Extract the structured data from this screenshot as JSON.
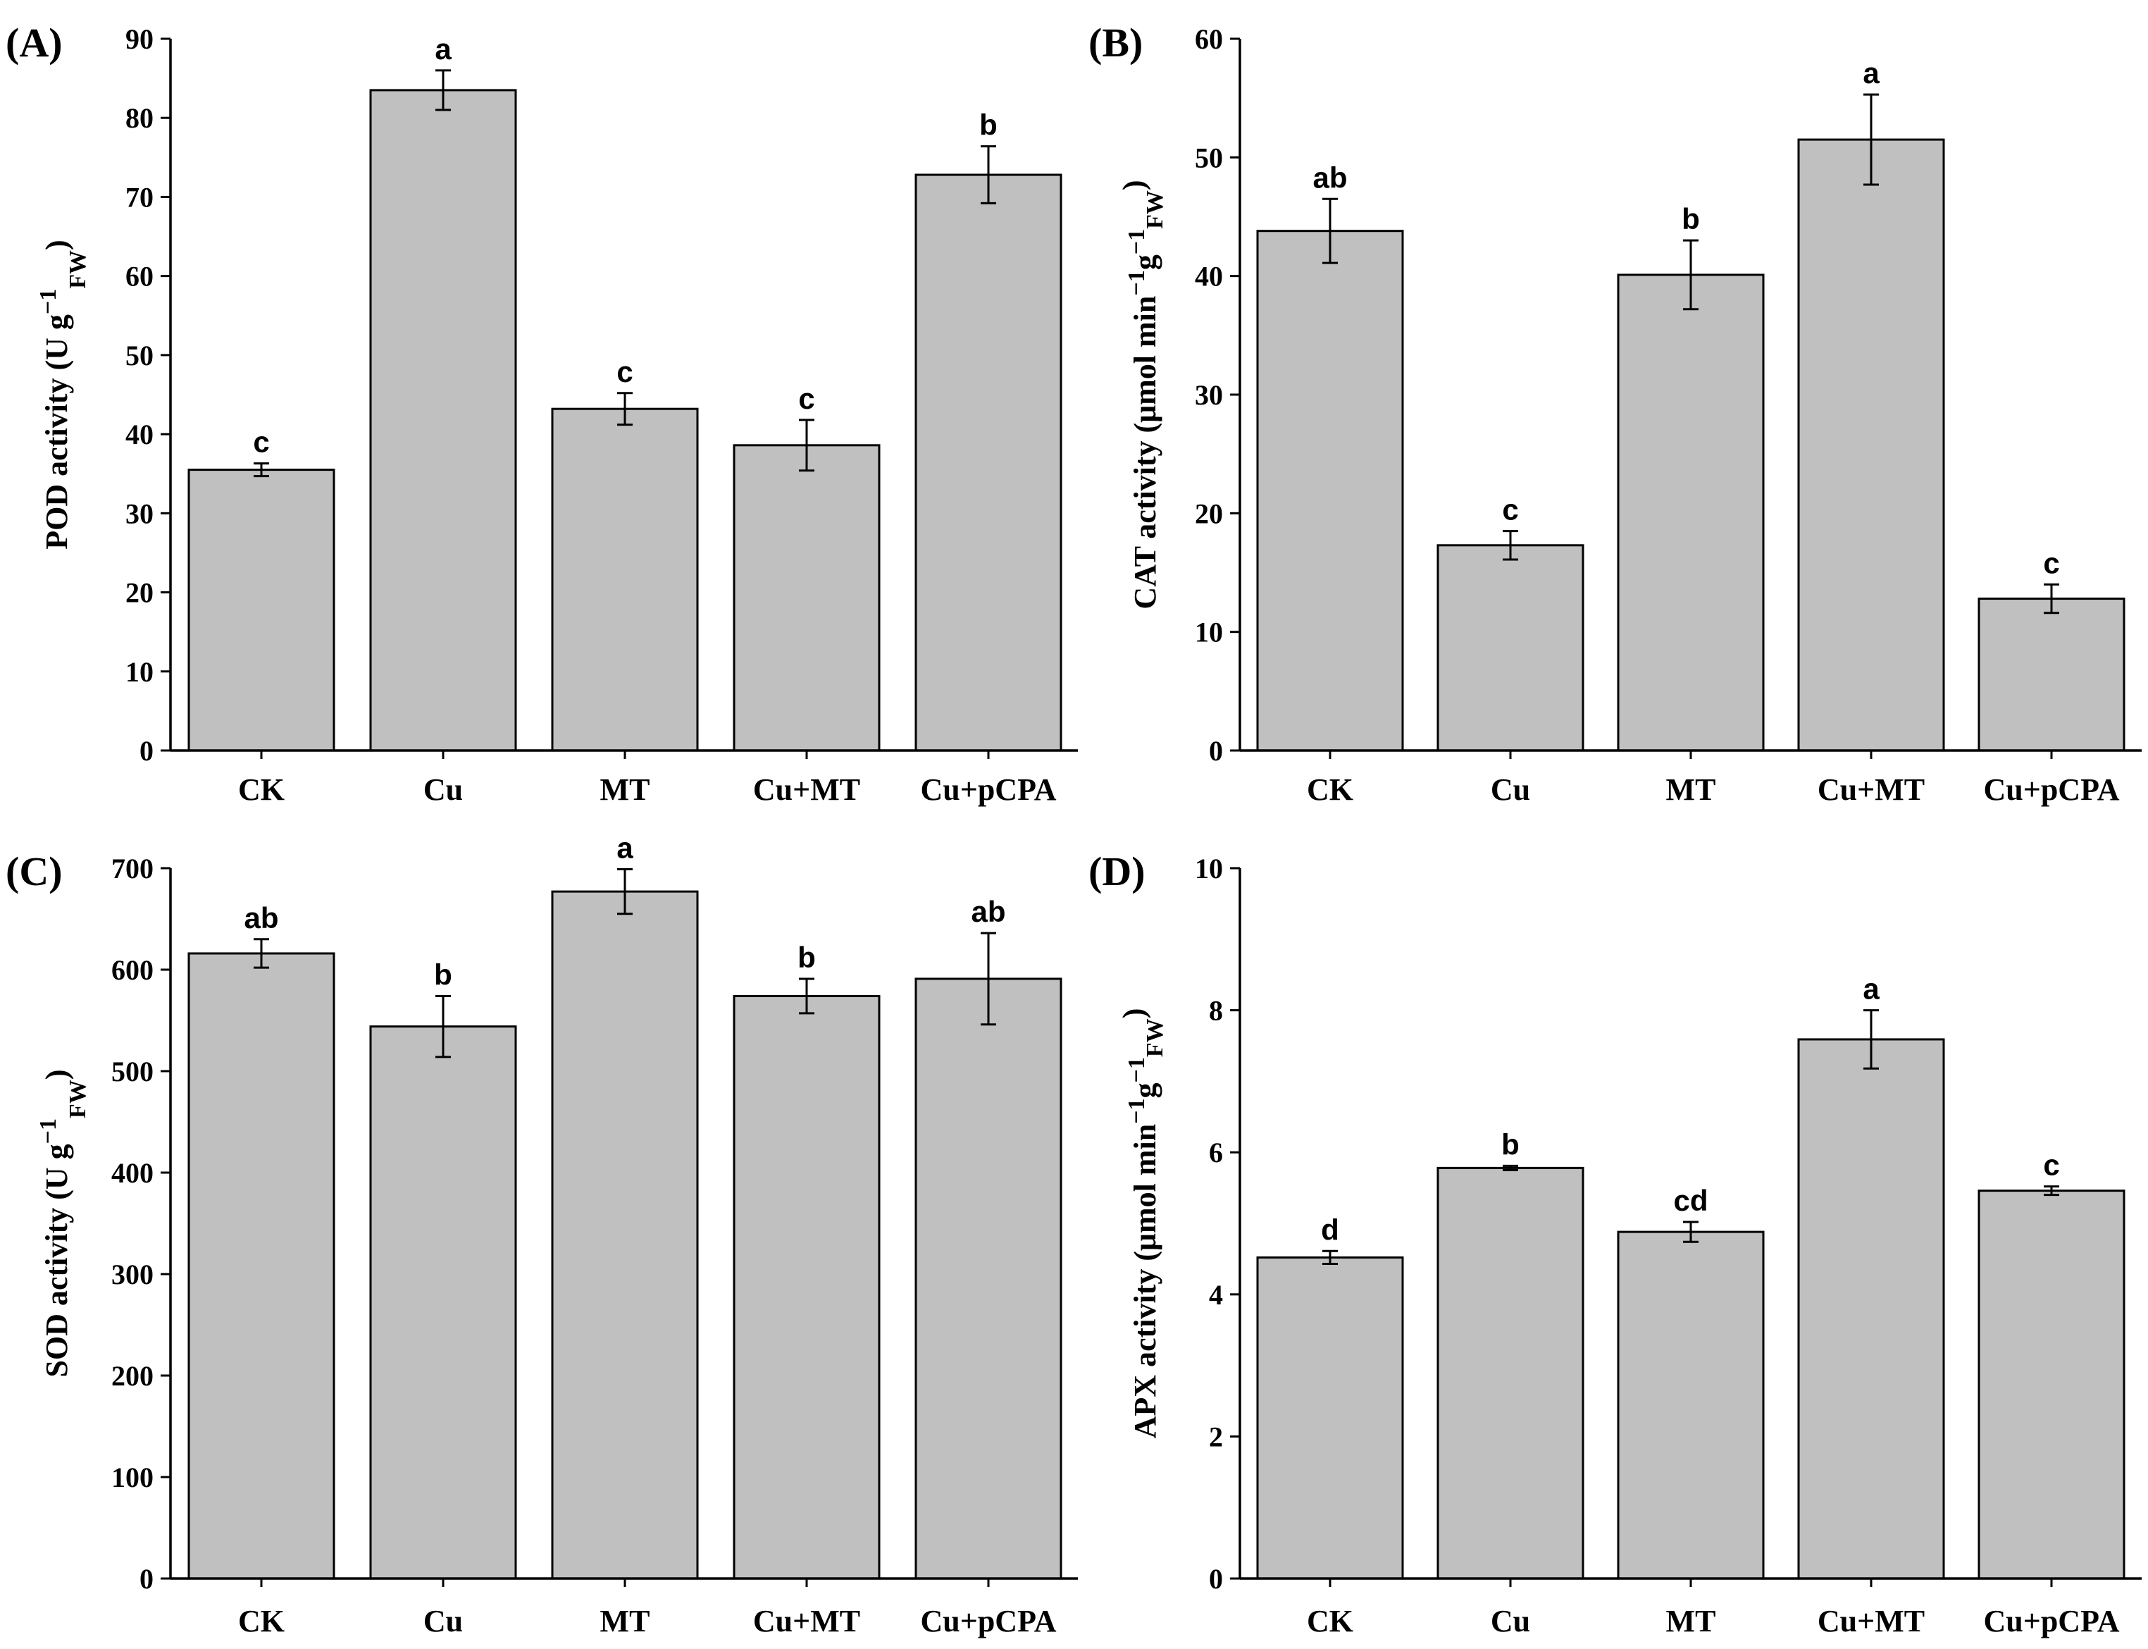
{
  "bar_fill": "#c0c0c0",
  "bar_stroke": "#000000",
  "chart_data": [
    {
      "panel": "(A)",
      "type": "bar",
      "categories": [
        "CK",
        "Cu",
        "MT",
        "Cu+MT",
        "Cu+pCPA"
      ],
      "values": [
        35.5,
        83.5,
        43.2,
        38.6,
        72.8
      ],
      "errors": [
        0.8,
        2.5,
        2.0,
        3.2,
        3.6
      ],
      "letters": [
        "c",
        "a",
        "c",
        "c",
        "b"
      ],
      "ylim": [
        0,
        90
      ],
      "yticks": [
        0,
        10,
        20,
        30,
        40,
        50,
        60,
        70,
        80,
        90
      ],
      "ylabel": {
        "main": "POD activity (U g",
        "sup1": "−1",
        "sub": "FW",
        "end": ")"
      }
    },
    {
      "panel": "(B)",
      "type": "bar",
      "categories": [
        "CK",
        "Cu",
        "MT",
        "Cu+MT",
        "Cu+pCPA"
      ],
      "values": [
        43.8,
        17.3,
        40.1,
        51.5,
        12.8
      ],
      "errors": [
        2.7,
        1.2,
        2.9,
        3.8,
        1.2
      ],
      "letters": [
        "ab",
        "c",
        "b",
        "a",
        "c"
      ],
      "ylim": [
        0,
        60
      ],
      "yticks": [
        0,
        10,
        20,
        30,
        40,
        50,
        60
      ],
      "ylabel": {
        "main": "CAT activity (μmol min",
        "sup1": "−1",
        "mid": "g",
        "sup2": "−1",
        "sub": "FW",
        "end": ")"
      }
    },
    {
      "panel": "(C)",
      "type": "bar",
      "categories": [
        "CK",
        "Cu",
        "MT",
        "Cu+MT",
        "Cu+pCPA"
      ],
      "values": [
        616,
        544,
        677,
        574,
        591
      ],
      "errors": [
        14,
        30,
        22,
        17,
        45
      ],
      "letters": [
        "ab",
        "b",
        "a",
        "b",
        "ab"
      ],
      "ylim": [
        0,
        700
      ],
      "yticks": [
        0,
        100,
        200,
        300,
        400,
        500,
        600,
        700
      ],
      "ylabel": {
        "main": "SOD activity (U g",
        "sup1": "−1",
        "sub": "FW",
        "end": ")"
      }
    },
    {
      "panel": "(D)",
      "type": "bar",
      "categories": [
        "CK",
        "Cu",
        "MT",
        "Cu+MT",
        "Cu+pCPA"
      ],
      "values": [
        4.52,
        5.78,
        4.88,
        7.59,
        5.46
      ],
      "errors": [
        0.09,
        0.03,
        0.14,
        0.41,
        0.06
      ],
      "letters": [
        "d",
        "b",
        "cd",
        "a",
        "c"
      ],
      "ylim": [
        0,
        10
      ],
      "yticks": [
        0,
        2,
        4,
        6,
        8,
        10
      ],
      "ylabel": {
        "main": "APX activity (μmol min",
        "sup1": "−1",
        "mid": "g",
        "sup2": "−1",
        "sub": "FW",
        "end": ")"
      }
    }
  ]
}
